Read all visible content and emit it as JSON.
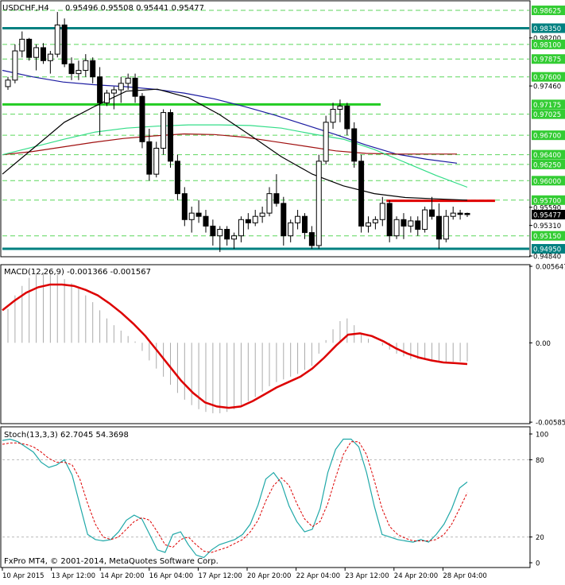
{
  "header": {
    "symbol_tf": "USDCHF,H4",
    "ohlc": "0.95496 0.95508 0.95441 0.95477"
  },
  "footer_note": "FxPro MT4, © 2001-2014, MetaQuotes Software Corp.",
  "colors": {
    "up_candle": "#ffffff",
    "down_candle": "#000000",
    "sr_line": "#008080",
    "green_line": "#22cc22",
    "red_line": "#e00000",
    "dash_line": "#33cc33",
    "ma_fast": "#000000",
    "ma_blue": "#1a1aa0",
    "ma_red": "#a01010",
    "ma_green": "#33dd88",
    "macd_signal": "#dd0000",
    "macd_hist": "#aaaaaa",
    "stoch_main": "#1fa8a8",
    "stoch_signal": "#dd0000"
  },
  "chart_data": [
    {
      "id": "price",
      "type": "candlestick",
      "ylim": [
        0.9484,
        0.9876
      ],
      "price_labels": [
        {
          "text": "0.98625",
          "value": 0.98625,
          "style": "green"
        },
        {
          "text": "0.98350",
          "value": 0.9835,
          "style": "teal"
        },
        {
          "text": "0.98200",
          "value": 0.982,
          "style": "plain"
        },
        {
          "text": "0.98100",
          "value": 0.981,
          "style": "green"
        },
        {
          "text": "0.97875",
          "value": 0.97875,
          "style": "green"
        },
        {
          "text": "0.97600",
          "value": 0.976,
          "style": "green"
        },
        {
          "text": "0.97460",
          "value": 0.9746,
          "style": "plain"
        },
        {
          "text": "0.97175",
          "value": 0.97175,
          "style": "green"
        },
        {
          "text": "0.97025",
          "value": 0.97025,
          "style": "green"
        },
        {
          "text": "0.96700",
          "value": 0.967,
          "style": "green"
        },
        {
          "text": "0.96400",
          "value": 0.964,
          "style": "green"
        },
        {
          "text": "0.96250",
          "value": 0.9625,
          "style": "green"
        },
        {
          "text": "0.96000",
          "value": 0.96,
          "style": "green"
        },
        {
          "text": "0.95700",
          "value": 0.957,
          "style": "green"
        },
        {
          "text": "0.95590",
          "value": 0.9559,
          "style": "plain"
        },
        {
          "text": "0.95477",
          "value": 0.95477,
          "style": "current"
        },
        {
          "text": "0.95310",
          "value": 0.9531,
          "style": "plain"
        },
        {
          "text": "0.95150",
          "value": 0.9515,
          "style": "green"
        },
        {
          "text": "0.94950",
          "value": 0.9495,
          "style": "teal"
        },
        {
          "text": "0.94840",
          "value": 0.9484,
          "style": "plain"
        }
      ],
      "dashed_levels": [
        0.98625,
        0.981,
        0.97875,
        0.976,
        0.97025,
        0.967,
        0.964,
        0.9625,
        0.96,
        0.957,
        0.9515
      ],
      "solid_levels": [
        {
          "value": 0.9835,
          "color_key": "sr_line",
          "x_end": 1.0
        },
        {
          "value": 0.9495,
          "color_key": "sr_line",
          "x_end": 1.0
        },
        {
          "value": 0.97175,
          "color_key": "green_line",
          "x_end": 0.718
        },
        {
          "value": 0.9569,
          "color_key": "red_line",
          "x_from": 0.729,
          "x_end": 0.935
        }
      ],
      "candles": [
        [
          0.9745,
          0.976,
          0.974,
          0.9755
        ],
        [
          0.9755,
          0.981,
          0.975,
          0.98
        ],
        [
          0.98,
          0.983,
          0.979,
          0.9818
        ],
        [
          0.9818,
          0.982,
          0.9785,
          0.979
        ],
        [
          0.979,
          0.981,
          0.977,
          0.9805
        ],
        [
          0.9805,
          0.9812,
          0.978,
          0.9785
        ],
        [
          0.9785,
          0.98,
          0.9765,
          0.9795
        ],
        [
          0.9795,
          0.986,
          0.979,
          0.984
        ],
        [
          0.984,
          0.985,
          0.9775,
          0.978
        ],
        [
          0.978,
          0.979,
          0.9755,
          0.9765
        ],
        [
          0.9765,
          0.9785,
          0.9755,
          0.977
        ],
        [
          0.977,
          0.9795,
          0.976,
          0.9785
        ],
        [
          0.9785,
          0.979,
          0.975,
          0.976
        ],
        [
          0.976,
          0.9775,
          0.967,
          0.972
        ],
        [
          0.972,
          0.974,
          0.9715,
          0.9735
        ],
        [
          0.9735,
          0.9745,
          0.971,
          0.974
        ],
        [
          0.974,
          0.976,
          0.972,
          0.975
        ],
        [
          0.975,
          0.9765,
          0.974,
          0.9758
        ],
        [
          0.9758,
          0.9765,
          0.972,
          0.973
        ],
        [
          0.973,
          0.9735,
          0.965,
          0.966
        ],
        [
          0.966,
          0.968,
          0.96,
          0.961
        ],
        [
          0.961,
          0.966,
          0.9605,
          0.965
        ],
        [
          0.965,
          0.971,
          0.964,
          0.9705
        ],
        [
          0.9705,
          0.971,
          0.962,
          0.963
        ],
        [
          0.963,
          0.964,
          0.957,
          0.958
        ],
        [
          0.958,
          0.959,
          0.953,
          0.954
        ],
        [
          0.954,
          0.956,
          0.952,
          0.955
        ],
        [
          0.955,
          0.957,
          0.9535,
          0.9545
        ],
        [
          0.9545,
          0.9555,
          0.952,
          0.953
        ],
        [
          0.953,
          0.954,
          0.95,
          0.9515
        ],
        [
          0.9515,
          0.953,
          0.949,
          0.9525
        ],
        [
          0.9525,
          0.953,
          0.95,
          0.951
        ],
        [
          0.951,
          0.952,
          0.9495,
          0.9515
        ],
        [
          0.9515,
          0.9545,
          0.9505,
          0.954
        ],
        [
          0.954,
          0.955,
          0.9525,
          0.9535
        ],
        [
          0.9535,
          0.9555,
          0.953,
          0.9545
        ],
        [
          0.9545,
          0.956,
          0.9535,
          0.955
        ],
        [
          0.955,
          0.959,
          0.9545,
          0.958
        ],
        [
          0.958,
          0.961,
          0.956,
          0.9565
        ],
        [
          0.9565,
          0.9575,
          0.95,
          0.9515
        ],
        [
          0.9515,
          0.954,
          0.9505,
          0.9535
        ],
        [
          0.9535,
          0.9555,
          0.9525,
          0.9545
        ],
        [
          0.9545,
          0.955,
          0.951,
          0.952
        ],
        [
          0.952,
          0.953,
          0.9495,
          0.95
        ],
        [
          0.95,
          0.964,
          0.9495,
          0.963
        ],
        [
          0.963,
          0.97,
          0.9625,
          0.969
        ],
        [
          0.969,
          0.972,
          0.968,
          0.971
        ],
        [
          0.971,
          0.9725,
          0.969,
          0.9715
        ],
        [
          0.9715,
          0.972,
          0.967,
          0.968
        ],
        [
          0.968,
          0.969,
          0.962,
          0.963
        ],
        [
          0.963,
          0.964,
          0.952,
          0.953
        ],
        [
          0.953,
          0.9545,
          0.952,
          0.9535
        ],
        [
          0.9535,
          0.9545,
          0.9525,
          0.954
        ],
        [
          0.954,
          0.9575,
          0.953,
          0.9565
        ],
        [
          0.9565,
          0.957,
          0.9505,
          0.9515
        ],
        [
          0.9515,
          0.9545,
          0.951,
          0.954
        ],
        [
          0.954,
          0.955,
          0.951,
          0.953
        ],
        [
          0.953,
          0.9545,
          0.952,
          0.9538
        ],
        [
          0.9538,
          0.9545,
          0.9515,
          0.9525
        ],
        [
          0.9525,
          0.956,
          0.952,
          0.9555
        ],
        [
          0.9555,
          0.9575,
          0.954,
          0.9545
        ],
        [
          0.9545,
          0.9565,
          0.9495,
          0.951
        ],
        [
          0.951,
          0.9555,
          0.9505,
          0.9545
        ],
        [
          0.9545,
          0.956,
          0.954,
          0.955
        ],
        [
          0.955,
          0.9555,
          0.954,
          0.9548
        ],
        [
          0.95496,
          0.95508,
          0.95441,
          0.95477
        ]
      ],
      "moving_averages": [
        {
          "color_key": "ma_blue",
          "values": [
            0.977,
            0.976,
            0.9752,
            0.9748,
            0.9745,
            0.9741,
            0.9735,
            0.9726,
            0.9714,
            0.9701,
            0.9686,
            0.9671,
            0.9655,
            0.9641,
            0.9633,
            0.9627
          ]
        },
        {
          "color_key": "ma_red",
          "values": [
            0.964,
            0.9645,
            0.9652,
            0.9659,
            0.9665,
            0.9669,
            0.9672,
            0.9671,
            0.9667,
            0.966,
            0.9653,
            0.9646,
            0.9642,
            0.9641,
            0.9641,
            0.9641
          ]
        },
        {
          "color_key": "ma_green",
          "values": [
            0.964,
            0.9652,
            0.9664,
            0.9675,
            0.9681,
            0.9684,
            0.9686,
            0.9686,
            0.9685,
            0.9681,
            0.9672,
            0.9664,
            0.9648,
            0.9628,
            0.9608,
            0.959
          ]
        },
        {
          "color_key": "ma_fast",
          "values": [
            0.961,
            0.965,
            0.969,
            0.9715,
            0.9738,
            0.9741,
            0.9728,
            0.9702,
            0.967,
            0.9637,
            0.961,
            0.9592,
            0.958,
            0.9574,
            0.9572,
            0.957
          ]
        }
      ]
    },
    {
      "id": "macd",
      "type": "histogram+line",
      "label": "MACD(12,26,9) -0.001366 -0.001567",
      "ylim": [
        -0.00585,
        0.00565
      ],
      "tick_labels": [
        {
          "text": "0.005647",
          "value": 0.005647
        },
        {
          "text": "0.00",
          "value": 0
        },
        {
          "text": "-0.005857",
          "value": -0.005857
        }
      ],
      "histogram": [
        0.0025,
        0.0035,
        0.0042,
        0.0048,
        0.0051,
        0.0052,
        0.0052,
        0.005,
        0.0047,
        0.0044,
        0.004,
        0.0035,
        0.003,
        0.0024,
        0.0018,
        0.0013,
        0.0009,
        0.0005,
        0.0001,
        -0.0006,
        -0.0013,
        -0.0019,
        -0.0025,
        -0.0031,
        -0.0037,
        -0.0042,
        -0.0046,
        -0.0049,
        -0.0051,
        -0.0052,
        -0.0052,
        -0.0051,
        -0.0049,
        -0.0046,
        -0.0043,
        -0.004,
        -0.0036,
        -0.0032,
        -0.0029,
        -0.0027,
        -0.0025,
        -0.0023,
        -0.002,
        -0.0017,
        -0.0008,
        0.0002,
        0.001,
        0.0016,
        0.0018,
        0.0013,
        0.0007,
        0.0003,
        0,
        -0.0002,
        -0.0005,
        -0.0008,
        -0.001,
        -0.0012,
        -0.0012,
        -0.0012,
        -0.0013,
        -0.0014,
        -0.0014,
        -0.0014,
        -0.0014,
        -0.001366
      ],
      "signal": [
        0.0024,
        0.0031,
        0.0037,
        0.0041,
        0.0043,
        0.0043,
        0.0042,
        0.0039,
        0.0035,
        0.0029,
        0.0022,
        0.0014,
        0.0005,
        -0.0006,
        -0.0017,
        -0.0028,
        -0.0037,
        -0.0044,
        -0.0047,
        -0.0048,
        -0.0047,
        -0.0043,
        -0.0038,
        -0.0033,
        -0.0029,
        -0.0025,
        -0.0019,
        -0.0011,
        -0.0002,
        0.0006,
        0.0007,
        0.0005,
        0.0001,
        -0.0004,
        -0.0008,
        -0.0011,
        -0.0013,
        -0.00145,
        -0.0015,
        -0.001567
      ]
    },
    {
      "id": "stoch",
      "type": "line",
      "label": "Stoch(13,3,3) 62.7045 54.3698",
      "ylim": [
        0,
        100
      ],
      "tick_labels": [
        {
          "text": "100",
          "value": 100
        },
        {
          "text": "80",
          "value": 80
        },
        {
          "text": "20",
          "value": 20
        },
        {
          "text": "0",
          "value": 0
        }
      ],
      "main": [
        95,
        96,
        94,
        90,
        86,
        78,
        74,
        76,
        80,
        68,
        45,
        22,
        18,
        17,
        18,
        24,
        33,
        37,
        34,
        22,
        10,
        8,
        22,
        24,
        14,
        6,
        4,
        10,
        14,
        16,
        18,
        22,
        30,
        45,
        65,
        70,
        62,
        44,
        32,
        24,
        26,
        42,
        70,
        88,
        96,
        96,
        90,
        70,
        44,
        22,
        20,
        18,
        17,
        16,
        18,
        16,
        22,
        30,
        42,
        58,
        62.7045
      ],
      "signal": [
        92,
        93,
        93,
        92,
        90,
        86,
        81,
        78,
        78,
        76,
        65,
        46,
        30,
        20,
        18,
        20,
        26,
        32,
        35,
        33,
        24,
        14,
        12,
        18,
        20,
        14,
        9,
        8,
        10,
        12,
        15,
        18,
        24,
        33,
        48,
        60,
        66,
        60,
        46,
        34,
        28,
        32,
        46,
        66,
        84,
        94,
        94,
        84,
        64,
        42,
        28,
        22,
        19,
        17,
        17,
        17,
        18,
        22,
        30,
        42,
        54.3698
      ]
    }
  ],
  "time_labels": [
    "10 Apr 2015",
    "13 Apr 12:00",
    "14 Apr 20:00",
    "16 Apr 04:00",
    "17 Apr 12:00",
    "20 Apr 20:00",
    "22 Apr 04:00",
    "23 Apr 12:00",
    "24 Apr 20:00",
    "28 Apr 04:00"
  ]
}
